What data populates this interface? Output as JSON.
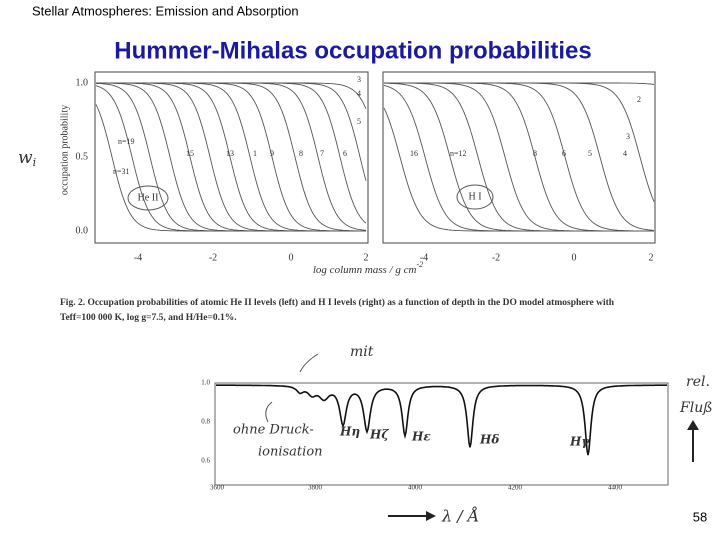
{
  "header": {
    "course": "Stellar Atmospheres:  Emission and Absorption",
    "title": "Hummer-Mihalas occupation probabilities",
    "page_number": "58"
  },
  "side_symbol": {
    "symbol": "w",
    "subscript": "i"
  },
  "figure_top": {
    "y_label": "occupation probability",
    "x_label": "log  column mass / g cm",
    "x_label_exponent": "-2",
    "y_ticks": [
      "1.0",
      "0.5",
      "0.0"
    ],
    "left_x_ticks": [
      "-4",
      "-2",
      "0",
      "2"
    ],
    "right_x_ticks": [
      "-4",
      "-2",
      "0",
      "2"
    ],
    "left_panel": "He II",
    "right_panel": "H I",
    "left_levels": [
      "3",
      "4",
      "5",
      "n=19",
      "15",
      "13",
      "1",
      "9",
      "8",
      "7",
      "6",
      "n=31"
    ],
    "right_levels": [
      "2",
      "3",
      "16",
      "n=12",
      "8",
      "6",
      "5",
      "4"
    ],
    "caption": [
      "Fig. 2. Occupation probabilities of atomic He II levels (left) and H I levels (right) as a function of depth in the DO model atmosphere with",
      "Teff=100 000 K, log g=7.5, and H/He=0.1%."
    ]
  },
  "figure_bottom": {
    "y_ticks": [
      "1.0",
      "0.8",
      "0.6"
    ],
    "x_ticks": [
      "3600",
      "3800",
      "4000",
      "4200",
      "4400"
    ],
    "lines": [
      "Hη",
      "Hζ",
      "Hε",
      "Hδ",
      "Hγ"
    ],
    "note_with": "mit",
    "note_without": [
      "ohne Druck-",
      "ionisation"
    ],
    "flux_label": [
      "rel.",
      "Fluß"
    ],
    "wavelength_label": "λ / Å"
  }
}
